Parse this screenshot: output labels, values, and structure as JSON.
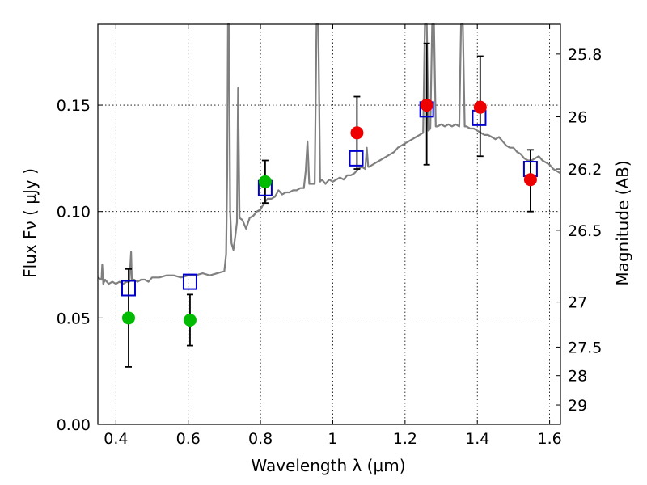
{
  "chart_data": {
    "type": "scatter",
    "title": "",
    "xlabel": "Wavelength  λ (μm)",
    "ylabel": "Flux  Fν  ( μJy )",
    "y2label": "Magnitude (AB)",
    "xlim": [
      0.35,
      1.63
    ],
    "ylim": [
      0.0,
      0.188
    ],
    "grid": true,
    "x_ticks": [
      {
        "value": 0.4,
        "label": "0.4"
      },
      {
        "value": 0.6,
        "label": "0.6"
      },
      {
        "value": 0.8,
        "label": "0.8"
      },
      {
        "value": 1.0,
        "label": "1"
      },
      {
        "value": 1.2,
        "label": "1.2"
      },
      {
        "value": 1.4,
        "label": "1.4"
      },
      {
        "value": 1.6,
        "label": "1.6"
      }
    ],
    "y_ticks": [
      {
        "value": 0.0,
        "label": "0.00"
      },
      {
        "value": 0.05,
        "label": "0.05"
      },
      {
        "value": 0.1,
        "label": "0.10"
      },
      {
        "value": 0.15,
        "label": "0.15"
      }
    ],
    "y2_ticks": [
      {
        "flux": 0.174,
        "label": "25.8"
      },
      {
        "flux": 0.1445,
        "label": "26"
      },
      {
        "flux": 0.12,
        "label": "26.2"
      },
      {
        "flux": 0.0912,
        "label": "26.5"
      },
      {
        "flux": 0.0575,
        "label": "27"
      },
      {
        "flux": 0.0363,
        "label": "27.5"
      },
      {
        "flux": 0.0229,
        "label": "28"
      },
      {
        "flux": 0.0091,
        "label": "29"
      }
    ],
    "colors": {
      "spectrum": "#808080",
      "model_box": "#0000cc",
      "green_points": "#00bb00",
      "red_points": "#ee0000",
      "errorbar": "#000000"
    },
    "series": [
      {
        "kind": "spectrum",
        "points": [
          [
            0.35,
            0.069
          ],
          [
            0.36,
            0.068
          ],
          [
            0.362,
            0.075
          ],
          [
            0.365,
            0.066
          ],
          [
            0.37,
            0.068
          ],
          [
            0.38,
            0.066
          ],
          [
            0.39,
            0.067
          ],
          [
            0.4,
            0.066
          ],
          [
            0.41,
            0.067
          ],
          [
            0.42,
            0.066
          ],
          [
            0.43,
            0.067
          ],
          [
            0.437,
            0.067
          ],
          [
            0.44,
            0.075
          ],
          [
            0.442,
            0.081
          ],
          [
            0.444,
            0.068
          ],
          [
            0.45,
            0.068
          ],
          [
            0.46,
            0.067
          ],
          [
            0.47,
            0.068
          ],
          [
            0.48,
            0.068
          ],
          [
            0.49,
            0.067
          ],
          [
            0.5,
            0.069
          ],
          [
            0.52,
            0.069
          ],
          [
            0.54,
            0.07
          ],
          [
            0.56,
            0.07
          ],
          [
            0.58,
            0.069
          ],
          [
            0.6,
            0.07
          ],
          [
            0.62,
            0.07
          ],
          [
            0.64,
            0.071
          ],
          [
            0.66,
            0.07
          ],
          [
            0.68,
            0.071
          ],
          [
            0.7,
            0.072
          ],
          [
            0.705,
            0.08
          ],
          [
            0.708,
            0.12
          ],
          [
            0.71,
            0.19
          ],
          [
            0.713,
            0.19
          ],
          [
            0.716,
            0.1
          ],
          [
            0.72,
            0.085
          ],
          [
            0.725,
            0.082
          ],
          [
            0.73,
            0.088
          ],
          [
            0.735,
            0.095
          ],
          [
            0.738,
            0.158
          ],
          [
            0.742,
            0.097
          ],
          [
            0.75,
            0.096
          ],
          [
            0.76,
            0.092
          ],
          [
            0.77,
            0.097
          ],
          [
            0.78,
            0.098
          ],
          [
            0.79,
            0.1
          ],
          [
            0.8,
            0.101
          ],
          [
            0.81,
            0.104
          ],
          [
            0.82,
            0.106
          ],
          [
            0.83,
            0.106
          ],
          [
            0.84,
            0.107
          ],
          [
            0.85,
            0.11
          ],
          [
            0.86,
            0.108
          ],
          [
            0.87,
            0.109
          ],
          [
            0.88,
            0.109
          ],
          [
            0.89,
            0.11
          ],
          [
            0.9,
            0.11
          ],
          [
            0.91,
            0.111
          ],
          [
            0.92,
            0.111
          ],
          [
            0.925,
            0.119
          ],
          [
            0.93,
            0.133
          ],
          [
            0.935,
            0.113
          ],
          [
            0.94,
            0.113
          ],
          [
            0.95,
            0.113
          ],
          [
            0.955,
            0.19
          ],
          [
            0.96,
            0.19
          ],
          [
            0.965,
            0.114
          ],
          [
            0.97,
            0.115
          ],
          [
            0.98,
            0.113
          ],
          [
            0.99,
            0.115
          ],
          [
            1.0,
            0.114
          ],
          [
            1.01,
            0.115
          ],
          [
            1.02,
            0.116
          ],
          [
            1.03,
            0.115
          ],
          [
            1.04,
            0.117
          ],
          [
            1.05,
            0.117
          ],
          [
            1.06,
            0.118
          ],
          [
            1.07,
            0.12
          ],
          [
            1.08,
            0.121
          ],
          [
            1.09,
            0.12
          ],
          [
            1.094,
            0.13
          ],
          [
            1.098,
            0.121
          ],
          [
            1.1,
            0.121
          ],
          [
            1.11,
            0.122
          ],
          [
            1.12,
            0.123
          ],
          [
            1.13,
            0.124
          ],
          [
            1.14,
            0.125
          ],
          [
            1.15,
            0.126
          ],
          [
            1.16,
            0.127
          ],
          [
            1.17,
            0.128
          ],
          [
            1.18,
            0.13
          ],
          [
            1.19,
            0.131
          ],
          [
            1.2,
            0.132
          ],
          [
            1.21,
            0.133
          ],
          [
            1.22,
            0.134
          ],
          [
            1.23,
            0.135
          ],
          [
            1.24,
            0.136
          ],
          [
            1.25,
            0.137
          ],
          [
            1.255,
            0.19
          ],
          [
            1.26,
            0.19
          ],
          [
            1.265,
            0.138
          ],
          [
            1.27,
            0.139
          ],
          [
            1.275,
            0.19
          ],
          [
            1.28,
            0.19
          ],
          [
            1.285,
            0.14
          ],
          [
            1.29,
            0.14
          ],
          [
            1.3,
            0.141
          ],
          [
            1.31,
            0.14
          ],
          [
            1.32,
            0.141
          ],
          [
            1.33,
            0.14
          ],
          [
            1.34,
            0.141
          ],
          [
            1.35,
            0.14
          ],
          [
            1.355,
            0.19
          ],
          [
            1.36,
            0.19
          ],
          [
            1.365,
            0.14
          ],
          [
            1.37,
            0.14
          ],
          [
            1.38,
            0.139
          ],
          [
            1.39,
            0.139
          ],
          [
            1.4,
            0.138
          ],
          [
            1.41,
            0.137
          ],
          [
            1.42,
            0.136
          ],
          [
            1.43,
            0.136
          ],
          [
            1.44,
            0.135
          ],
          [
            1.45,
            0.134
          ],
          [
            1.46,
            0.135
          ],
          [
            1.47,
            0.133
          ],
          [
            1.48,
            0.131
          ],
          [
            1.49,
            0.13
          ],
          [
            1.5,
            0.13
          ],
          [
            1.51,
            0.128
          ],
          [
            1.52,
            0.127
          ],
          [
            1.53,
            0.125
          ],
          [
            1.54,
            0.124
          ],
          [
            1.55,
            0.124
          ],
          [
            1.56,
            0.125
          ],
          [
            1.57,
            0.126
          ],
          [
            1.58,
            0.124
          ],
          [
            1.59,
            0.123
          ],
          [
            1.6,
            0.122
          ],
          [
            1.61,
            0.12
          ],
          [
            1.62,
            0.119
          ],
          [
            1.63,
            0.118
          ]
        ]
      },
      {
        "kind": "model_boxes",
        "points": [
          [
            0.435,
            0.064
          ],
          [
            0.605,
            0.067
          ],
          [
            0.813,
            0.111
          ],
          [
            1.065,
            0.125
          ],
          [
            1.26,
            0.148
          ],
          [
            1.405,
            0.144
          ],
          [
            1.547,
            0.12
          ]
        ]
      },
      {
        "kind": "green_points",
        "points": [
          {
            "x": 0.435,
            "y": 0.05,
            "lo": 0.027,
            "hi": 0.073
          },
          {
            "x": 0.605,
            "y": 0.049,
            "lo": 0.037,
            "hi": 0.061
          },
          {
            "x": 0.813,
            "y": 0.114,
            "lo": 0.104,
            "hi": 0.124
          }
        ]
      },
      {
        "kind": "red_points",
        "points": [
          {
            "x": 1.067,
            "y": 0.137,
            "lo": 0.12,
            "hi": 0.154
          },
          {
            "x": 1.26,
            "y": 0.15,
            "lo": 0.122,
            "hi": 0.179
          },
          {
            "x": 1.408,
            "y": 0.149,
            "lo": 0.126,
            "hi": 0.173
          },
          {
            "x": 1.547,
            "y": 0.115,
            "lo": 0.1,
            "hi": 0.129
          }
        ]
      }
    ]
  }
}
